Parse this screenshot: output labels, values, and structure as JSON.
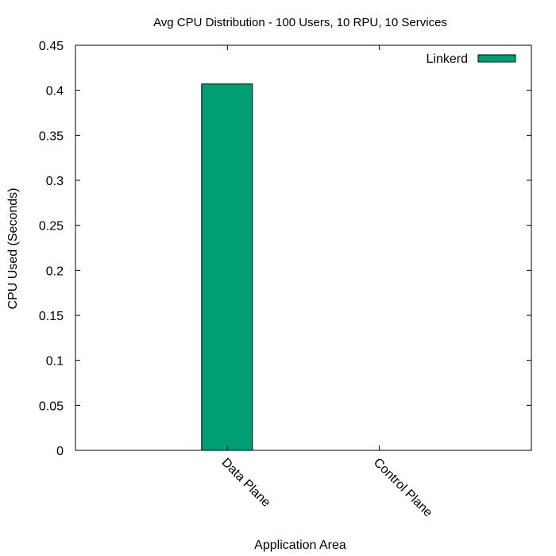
{
  "chart_data": {
    "type": "bar",
    "title": "Avg CPU Distribution - 100 Users, 10 RPU, 10 Services",
    "xlabel": "Application Area",
    "ylabel": "CPU Used (Seconds)",
    "categories": [
      "Data Plane",
      "Control Plane"
    ],
    "series": [
      {
        "name": "Linkerd",
        "values": [
          0.407,
          0
        ],
        "color": "#009e73"
      }
    ],
    "ylim": [
      0,
      0.45
    ],
    "yticks": [
      "0",
      "0.05",
      "0.1",
      "0.15",
      "0.2",
      "0.25",
      "0.3",
      "0.35",
      "0.4",
      "0.45"
    ],
    "legend_position": "top-right",
    "grid": false
  }
}
